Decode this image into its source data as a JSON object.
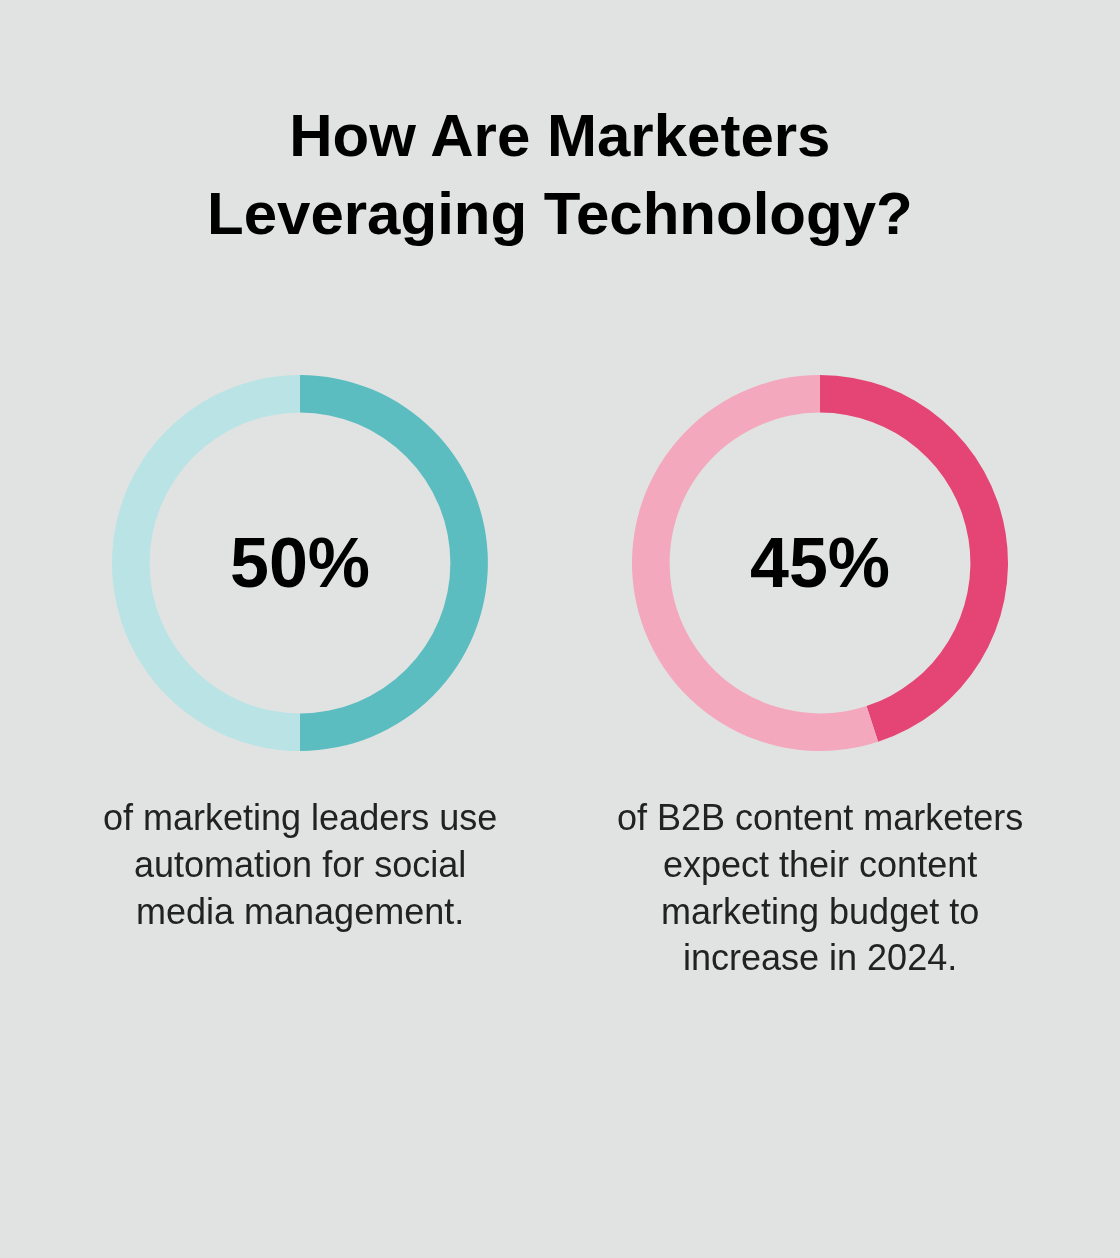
{
  "chart_data": [
    {
      "type": "donut",
      "title": "How Are Marketers Leveraging Technology?",
      "categories": [
        null,
        null
      ],
      "values": [
        50,
        50
      ],
      "colors": [
        "#5bbdc0",
        "#b9e3e4"
      ],
      "annotations": [
        "50%",
        "of marketing leaders use automation for social media management."
      ]
    },
    {
      "type": "donut",
      "categories": [
        null,
        null
      ],
      "values": [
        45,
        55
      ],
      "colors": [
        "#e54575",
        "#f3a8be"
      ],
      "annotations": [
        "45%",
        "of B2B content marketers expect their content marketing budget to increase in 2024."
      ]
    }
  ]
}
